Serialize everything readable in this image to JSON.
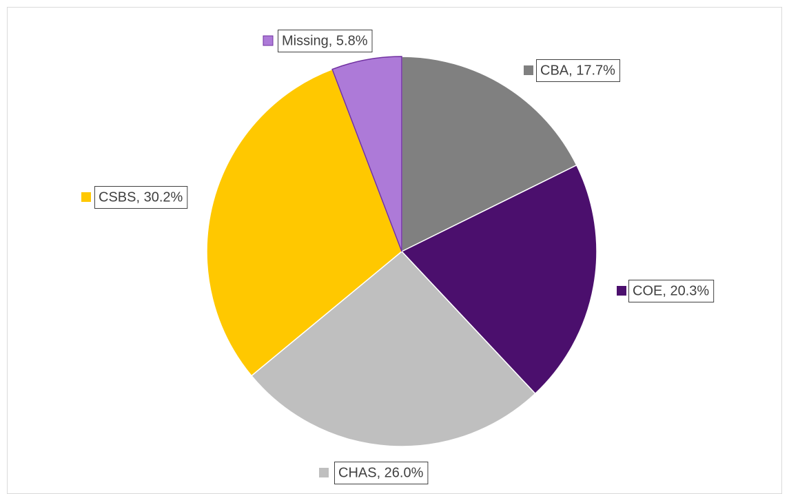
{
  "chart_data": {
    "type": "pie",
    "categories": [
      "CBA",
      "COE",
      "CHAS",
      "CSBS",
      "Missing"
    ],
    "values": [
      17.7,
      20.3,
      26.0,
      30.2,
      5.8
    ],
    "value_labels": [
      "CBA, 17.7%",
      "COE, 20.3%",
      "CHAS, 26.0%",
      "CSBS, 30.2%",
      "Missing, 5.8%"
    ],
    "colors": [
      "#808080",
      "#4b0f6d",
      "#bfbfbf",
      "#ffc800",
      "#ad7ad8"
    ]
  }
}
